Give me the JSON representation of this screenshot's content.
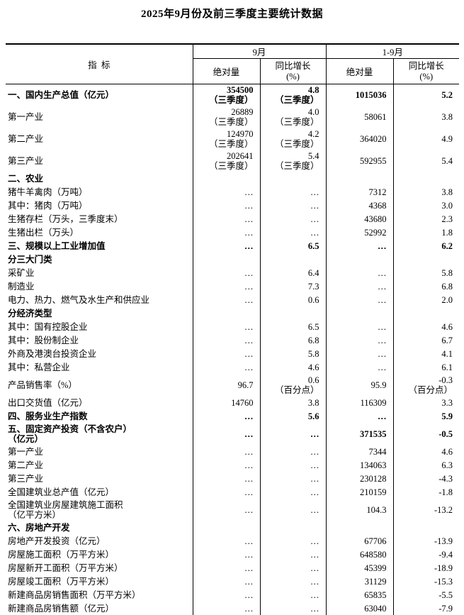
{
  "title": "2025年9月份及前三季度主要统计数据",
  "table": {
    "header": {
      "indicator": "指  标",
      "sep_group": "9月",
      "ytd_group": "1-9月",
      "absolute": "绝对量",
      "yoy_line1": "同比增长",
      "yoy_line2": "(%)"
    },
    "rows": [
      {
        "label": "一、国内生产总值（亿元）",
        "bold": true,
        "sep_abs": "354500",
        "sep_abs_note": "（三季度）",
        "sep_yoy": "4.8",
        "sep_yoy_note": "（三季度）",
        "ytd_abs": "1015036",
        "ytd_yoy": "5.2"
      },
      {
        "label": "第一产业",
        "sep_abs": "26889",
        "sep_abs_note": "（三季度）",
        "sep_yoy": "4.0",
        "sep_yoy_note": "（三季度）",
        "ytd_abs": "58061",
        "ytd_yoy": "3.8"
      },
      {
        "label": "第二产业",
        "sep_abs": "124970",
        "sep_abs_note": "（三季度）",
        "sep_yoy": "4.2",
        "sep_yoy_note": "（三季度）",
        "ytd_abs": "364020",
        "ytd_yoy": "4.9"
      },
      {
        "label": "第三产业",
        "sep_abs": "202641",
        "sep_abs_note": "（三季度）",
        "sep_yoy": "5.4",
        "sep_yoy_note": "（三季度）",
        "ytd_abs": "592955",
        "ytd_yoy": "5.4"
      },
      {
        "label": "二、农业",
        "bold": true,
        "sep_abs": "",
        "sep_yoy": "",
        "ytd_abs": "",
        "ytd_yoy": ""
      },
      {
        "label": "猪牛羊禽肉（万吨）",
        "sep_abs": "…",
        "sep_yoy": "…",
        "ytd_abs": "7312",
        "ytd_yoy": "3.8"
      },
      {
        "label": "其中：猪肉（万吨）",
        "sep_abs": "…",
        "sep_yoy": "…",
        "ytd_abs": "4368",
        "ytd_yoy": "3.0"
      },
      {
        "label": "生猪存栏（万头，三季度末）",
        "sep_abs": "…",
        "sep_yoy": "…",
        "ytd_abs": "43680",
        "ytd_yoy": "2.3"
      },
      {
        "label": "生猪出栏（万头）",
        "sep_abs": "…",
        "sep_yoy": "…",
        "ytd_abs": "52992",
        "ytd_yoy": "1.8"
      },
      {
        "label": "三、规模以上工业增加值",
        "bold": true,
        "sep_abs": "…",
        "sep_yoy": "6.5",
        "ytd_abs": "…",
        "ytd_yoy": "6.2"
      },
      {
        "label": "分三大门类",
        "bold": true,
        "sep_abs": "",
        "sep_yoy": "",
        "ytd_abs": "",
        "ytd_yoy": ""
      },
      {
        "label": "采矿业",
        "sep_abs": "…",
        "sep_yoy": "6.4",
        "ytd_abs": "…",
        "ytd_yoy": "5.8"
      },
      {
        "label": "制造业",
        "sep_abs": "…",
        "sep_yoy": "7.3",
        "ytd_abs": "…",
        "ytd_yoy": "6.8"
      },
      {
        "label": "电力、热力、燃气及水生产和供应业",
        "sep_abs": "…",
        "sep_yoy": "0.6",
        "ytd_abs": "…",
        "ytd_yoy": "2.0"
      },
      {
        "label": "分经济类型",
        "bold": true,
        "sep_abs": "",
        "sep_yoy": "",
        "ytd_abs": "",
        "ytd_yoy": ""
      },
      {
        "label": "其中：国有控股企业",
        "sep_abs": "…",
        "sep_yoy": "6.5",
        "ytd_abs": "…",
        "ytd_yoy": "4.6"
      },
      {
        "label": "其中：股份制企业",
        "sep_abs": "…",
        "sep_yoy": "6.8",
        "ytd_abs": "…",
        "ytd_yoy": "6.7"
      },
      {
        "label": "外商及港澳台投资企业",
        "indent": true,
        "sep_abs": "…",
        "sep_yoy": "5.8",
        "ytd_abs": "…",
        "ytd_yoy": "4.1"
      },
      {
        "label": "其中：私营企业",
        "sep_abs": "…",
        "sep_yoy": "4.6",
        "ytd_abs": "…",
        "ytd_yoy": "6.1"
      },
      {
        "label": "产品销售率（%）",
        "sep_abs": "96.7",
        "sep_yoy": "0.6",
        "sep_yoy_note": "（百分点）",
        "ytd_abs": "95.9",
        "ytd_yoy": "-0.3",
        "ytd_yoy_note": "（百分点）"
      },
      {
        "label": "出口交货值（亿元）",
        "sep_abs": "14760",
        "sep_yoy": "3.8",
        "ytd_abs": "116309",
        "ytd_yoy": "3.3"
      },
      {
        "label": "四、服务业生产指数",
        "bold": true,
        "sep_abs": "…",
        "sep_yoy": "5.6",
        "ytd_abs": "…",
        "ytd_yoy": "5.9"
      },
      {
        "label": "五、固定资产投资（不含农户）",
        "label2": "（亿元）",
        "bold": true,
        "sep_abs": "…",
        "sep_yoy": "…",
        "ytd_abs": "371535",
        "ytd_yoy": "-0.5"
      },
      {
        "label": "第一产业",
        "sep_abs": "…",
        "sep_yoy": "…",
        "ytd_abs": "7344",
        "ytd_yoy": "4.6"
      },
      {
        "label": "第二产业",
        "sep_abs": "…",
        "sep_yoy": "…",
        "ytd_abs": "134063",
        "ytd_yoy": "6.3"
      },
      {
        "label": "第三产业",
        "sep_abs": "…",
        "sep_yoy": "…",
        "ytd_abs": "230128",
        "ytd_yoy": "-4.3"
      },
      {
        "label": "全国建筑业总产值（亿元）",
        "sep_abs": "…",
        "sep_yoy": "…",
        "ytd_abs": "210159",
        "ytd_yoy": "-1.8"
      },
      {
        "label": "全国建筑业房屋建筑施工面积",
        "label2": "（亿平方米）",
        "sep_abs": "…",
        "sep_yoy": "…",
        "ytd_abs": "104.3",
        "ytd_yoy": "-13.2"
      },
      {
        "label": "六、房地产开发",
        "bold": true,
        "sep_abs": "",
        "sep_yoy": "",
        "ytd_abs": "",
        "ytd_yoy": ""
      },
      {
        "label": "房地产开发投资（亿元）",
        "sep_abs": "…",
        "sep_yoy": "…",
        "ytd_abs": "67706",
        "ytd_yoy": "-13.9"
      },
      {
        "label": "房屋施工面积（万平方米）",
        "sep_abs": "…",
        "sep_yoy": "…",
        "ytd_abs": "648580",
        "ytd_yoy": "-9.4"
      },
      {
        "label": "房屋新开工面积（万平方米）",
        "sep_abs": "…",
        "sep_yoy": "…",
        "ytd_abs": "45399",
        "ytd_yoy": "-18.9"
      },
      {
        "label": "房屋竣工面积（万平方米）",
        "sep_abs": "…",
        "sep_yoy": "…",
        "ytd_abs": "31129",
        "ytd_yoy": "-15.3"
      },
      {
        "label": "新建商品房销售面积（万平方米）",
        "sep_abs": "…",
        "sep_yoy": "…",
        "ytd_abs": "65835",
        "ytd_yoy": "-5.5"
      },
      {
        "label": "新建商品房销售额（亿元）",
        "sep_abs": "…",
        "sep_yoy": "…",
        "ytd_abs": "63040",
        "ytd_yoy": "-7.9"
      }
    ]
  }
}
